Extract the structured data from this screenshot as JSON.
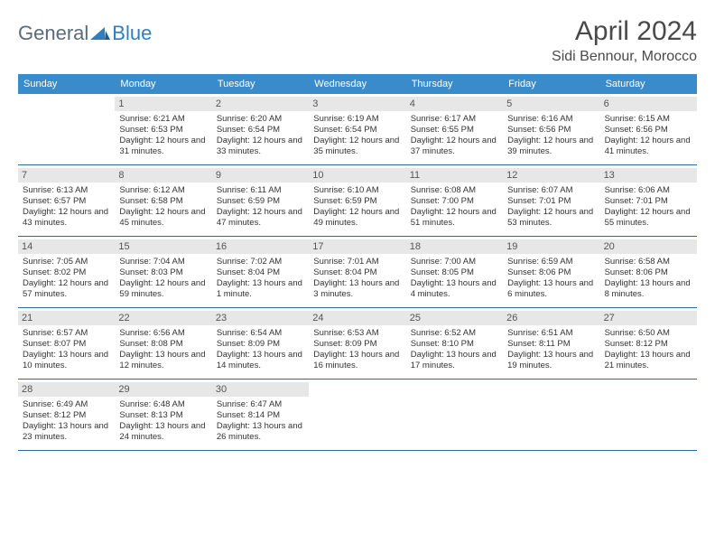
{
  "logo": {
    "word1": "General",
    "word2": "Blue"
  },
  "title": "April 2024",
  "location": "Sidi Bennour, Morocco",
  "colors": {
    "header_bg": "#3a8bc9",
    "header_text": "#ffffff",
    "date_bg": "#e7e7e7",
    "rule": "#2b6aa0",
    "logo_gray": "#5a6b7b",
    "logo_blue": "#2f7fbf"
  },
  "day_names": [
    "Sunday",
    "Monday",
    "Tuesday",
    "Wednesday",
    "Thursday",
    "Friday",
    "Saturday"
  ],
  "weeks": [
    [
      null,
      {
        "n": "1",
        "sr": "6:21 AM",
        "ss": "6:53 PM",
        "dl": "12 hours and 31 minutes."
      },
      {
        "n": "2",
        "sr": "6:20 AM",
        "ss": "6:54 PM",
        "dl": "12 hours and 33 minutes."
      },
      {
        "n": "3",
        "sr": "6:19 AM",
        "ss": "6:54 PM",
        "dl": "12 hours and 35 minutes."
      },
      {
        "n": "4",
        "sr": "6:17 AM",
        "ss": "6:55 PM",
        "dl": "12 hours and 37 minutes."
      },
      {
        "n": "5",
        "sr": "6:16 AM",
        "ss": "6:56 PM",
        "dl": "12 hours and 39 minutes."
      },
      {
        "n": "6",
        "sr": "6:15 AM",
        "ss": "6:56 PM",
        "dl": "12 hours and 41 minutes."
      }
    ],
    [
      {
        "n": "7",
        "sr": "6:13 AM",
        "ss": "6:57 PM",
        "dl": "12 hours and 43 minutes."
      },
      {
        "n": "8",
        "sr": "6:12 AM",
        "ss": "6:58 PM",
        "dl": "12 hours and 45 minutes."
      },
      {
        "n": "9",
        "sr": "6:11 AM",
        "ss": "6:59 PM",
        "dl": "12 hours and 47 minutes."
      },
      {
        "n": "10",
        "sr": "6:10 AM",
        "ss": "6:59 PM",
        "dl": "12 hours and 49 minutes."
      },
      {
        "n": "11",
        "sr": "6:08 AM",
        "ss": "7:00 PM",
        "dl": "12 hours and 51 minutes."
      },
      {
        "n": "12",
        "sr": "6:07 AM",
        "ss": "7:01 PM",
        "dl": "12 hours and 53 minutes."
      },
      {
        "n": "13",
        "sr": "6:06 AM",
        "ss": "7:01 PM",
        "dl": "12 hours and 55 minutes."
      }
    ],
    [
      {
        "n": "14",
        "sr": "7:05 AM",
        "ss": "8:02 PM",
        "dl": "12 hours and 57 minutes."
      },
      {
        "n": "15",
        "sr": "7:04 AM",
        "ss": "8:03 PM",
        "dl": "12 hours and 59 minutes."
      },
      {
        "n": "16",
        "sr": "7:02 AM",
        "ss": "8:04 PM",
        "dl": "13 hours and 1 minute."
      },
      {
        "n": "17",
        "sr": "7:01 AM",
        "ss": "8:04 PM",
        "dl": "13 hours and 3 minutes."
      },
      {
        "n": "18",
        "sr": "7:00 AM",
        "ss": "8:05 PM",
        "dl": "13 hours and 4 minutes."
      },
      {
        "n": "19",
        "sr": "6:59 AM",
        "ss": "8:06 PM",
        "dl": "13 hours and 6 minutes."
      },
      {
        "n": "20",
        "sr": "6:58 AM",
        "ss": "8:06 PM",
        "dl": "13 hours and 8 minutes."
      }
    ],
    [
      {
        "n": "21",
        "sr": "6:57 AM",
        "ss": "8:07 PM",
        "dl": "13 hours and 10 minutes."
      },
      {
        "n": "22",
        "sr": "6:56 AM",
        "ss": "8:08 PM",
        "dl": "13 hours and 12 minutes."
      },
      {
        "n": "23",
        "sr": "6:54 AM",
        "ss": "8:09 PM",
        "dl": "13 hours and 14 minutes."
      },
      {
        "n": "24",
        "sr": "6:53 AM",
        "ss": "8:09 PM",
        "dl": "13 hours and 16 minutes."
      },
      {
        "n": "25",
        "sr": "6:52 AM",
        "ss": "8:10 PM",
        "dl": "13 hours and 17 minutes."
      },
      {
        "n": "26",
        "sr": "6:51 AM",
        "ss": "8:11 PM",
        "dl": "13 hours and 19 minutes."
      },
      {
        "n": "27",
        "sr": "6:50 AM",
        "ss": "8:12 PM",
        "dl": "13 hours and 21 minutes."
      }
    ],
    [
      {
        "n": "28",
        "sr": "6:49 AM",
        "ss": "8:12 PM",
        "dl": "13 hours and 23 minutes."
      },
      {
        "n": "29",
        "sr": "6:48 AM",
        "ss": "8:13 PM",
        "dl": "13 hours and 24 minutes."
      },
      {
        "n": "30",
        "sr": "6:47 AM",
        "ss": "8:14 PM",
        "dl": "13 hours and 26 minutes."
      },
      null,
      null,
      null,
      null
    ]
  ],
  "labels": {
    "sunrise": "Sunrise:",
    "sunset": "Sunset:",
    "daylight": "Daylight:"
  }
}
